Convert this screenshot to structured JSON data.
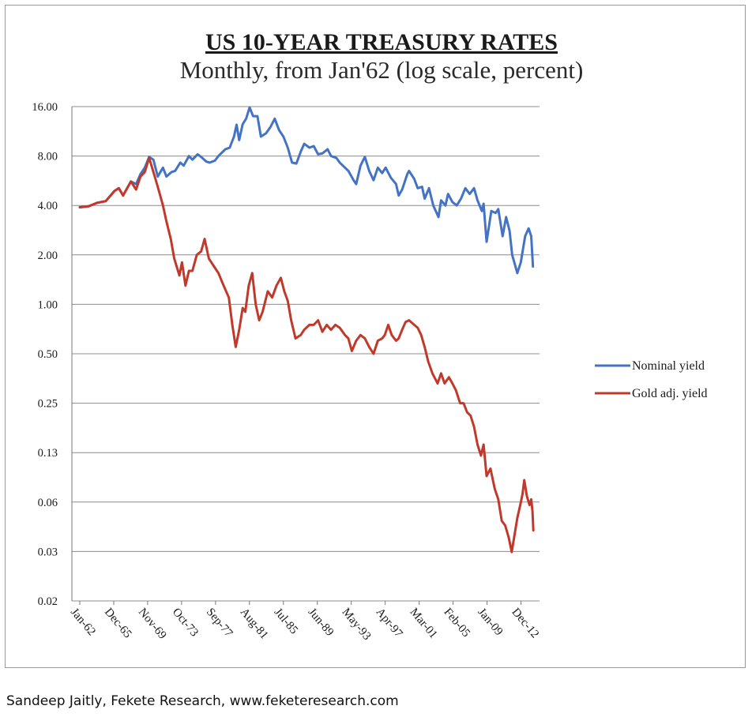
{
  "credit": "Sandeep Jaitly, Fekete Research, www.feketeresearch.com",
  "chart_data": {
    "type": "line",
    "title": "US 10-YEAR TREASURY RATES",
    "subtitle": "Monthly, from Jan'62 (log scale, percent)",
    "xlabel": "",
    "ylabel": "",
    "y_scale": "log2",
    "ylim": [
      0.02,
      16
    ],
    "y_ticks": [
      {
        "value": 16,
        "label": "16.00"
      },
      {
        "value": 8,
        "label": "8.00"
      },
      {
        "value": 4,
        "label": "4.00"
      },
      {
        "value": 2,
        "label": "2.00"
      },
      {
        "value": 1,
        "label": "1.00"
      },
      {
        "value": 0.5,
        "label": "0.50"
      },
      {
        "value": 0.25,
        "label": "0.25"
      },
      {
        "value": 0.125,
        "label": "0.13"
      },
      {
        "value": 0.0625,
        "label": "0.06"
      },
      {
        "value": 0.03125,
        "label": "0.03"
      },
      {
        "value": 0.015625,
        "label": "0.02"
      }
    ],
    "xlim": [
      1962.0,
      2014.5
    ],
    "x_ticks": [
      {
        "value": 1962.0,
        "label": "Jan-62"
      },
      {
        "value": 1965.92,
        "label": "Dec-65"
      },
      {
        "value": 1969.83,
        "label": "Nov-69"
      },
      {
        "value": 1973.75,
        "label": "Oct-73"
      },
      {
        "value": 1977.67,
        "label": "Sep-77"
      },
      {
        "value": 1981.58,
        "label": "Aug-81"
      },
      {
        "value": 1985.5,
        "label": "Jul-85"
      },
      {
        "value": 1989.42,
        "label": "Jun-89"
      },
      {
        "value": 1993.33,
        "label": "May-93"
      },
      {
        "value": 1997.25,
        "label": "Apr-97"
      },
      {
        "value": 2001.17,
        "label": "Mar-01"
      },
      {
        "value": 2005.08,
        "label": "Feb-05"
      },
      {
        "value": 2009.0,
        "label": "Jan-09"
      },
      {
        "value": 2012.92,
        "label": "Dec-12"
      }
    ],
    "grid": true,
    "legend_position": "right",
    "series": [
      {
        "name": "Nominal yield",
        "color": "#4472C4",
        "points": [
          [
            1962.0,
            3.9
          ],
          [
            1963.0,
            3.95
          ],
          [
            1964.0,
            4.15
          ],
          [
            1965.0,
            4.25
          ],
          [
            1966.0,
            4.9
          ],
          [
            1966.5,
            5.1
          ],
          [
            1967.0,
            4.6
          ],
          [
            1967.9,
            5.6
          ],
          [
            1968.5,
            5.4
          ],
          [
            1969.0,
            6.2
          ],
          [
            1969.5,
            6.8
          ],
          [
            1970.0,
            7.9
          ],
          [
            1970.5,
            7.6
          ],
          [
            1971.0,
            6.0
          ],
          [
            1971.6,
            6.8
          ],
          [
            1972.0,
            6.0
          ],
          [
            1972.6,
            6.4
          ],
          [
            1973.0,
            6.5
          ],
          [
            1973.6,
            7.3
          ],
          [
            1974.0,
            7.0
          ],
          [
            1974.6,
            8.0
          ],
          [
            1975.0,
            7.6
          ],
          [
            1975.6,
            8.2
          ],
          [
            1976.0,
            7.9
          ],
          [
            1976.6,
            7.4
          ],
          [
            1977.0,
            7.3
          ],
          [
            1977.6,
            7.5
          ],
          [
            1978.0,
            8.0
          ],
          [
            1978.8,
            8.8
          ],
          [
            1979.3,
            9.0
          ],
          [
            1979.8,
            10.5
          ],
          [
            1980.1,
            12.4
          ],
          [
            1980.4,
            10.0
          ],
          [
            1980.8,
            12.5
          ],
          [
            1981.2,
            13.5
          ],
          [
            1981.6,
            15.8
          ],
          [
            1982.0,
            14.0
          ],
          [
            1982.5,
            14.0
          ],
          [
            1982.9,
            10.5
          ],
          [
            1983.5,
            11.0
          ],
          [
            1984.0,
            12.0
          ],
          [
            1984.5,
            13.5
          ],
          [
            1985.0,
            11.5
          ],
          [
            1985.5,
            10.5
          ],
          [
            1986.0,
            9.0
          ],
          [
            1986.5,
            7.3
          ],
          [
            1987.0,
            7.2
          ],
          [
            1987.5,
            8.5
          ],
          [
            1987.9,
            9.5
          ],
          [
            1988.5,
            9.0
          ],
          [
            1989.0,
            9.2
          ],
          [
            1989.5,
            8.2
          ],
          [
            1990.0,
            8.3
          ],
          [
            1990.6,
            8.8
          ],
          [
            1991.0,
            8.0
          ],
          [
            1991.6,
            7.8
          ],
          [
            1992.0,
            7.3
          ],
          [
            1992.6,
            6.8
          ],
          [
            1993.0,
            6.5
          ],
          [
            1993.6,
            5.7
          ],
          [
            1993.9,
            5.4
          ],
          [
            1994.4,
            7.0
          ],
          [
            1994.9,
            7.9
          ],
          [
            1995.4,
            6.5
          ],
          [
            1995.9,
            5.7
          ],
          [
            1996.4,
            6.8
          ],
          [
            1996.9,
            6.3
          ],
          [
            1997.3,
            6.8
          ],
          [
            1997.9,
            5.9
          ],
          [
            1998.5,
            5.4
          ],
          [
            1998.8,
            4.6
          ],
          [
            1999.2,
            5.0
          ],
          [
            1999.8,
            6.2
          ],
          [
            2000.0,
            6.5
          ],
          [
            2000.6,
            5.8
          ],
          [
            2001.0,
            5.1
          ],
          [
            2001.5,
            5.2
          ],
          [
            2001.8,
            4.4
          ],
          [
            2002.3,
            5.1
          ],
          [
            2002.8,
            4.0
          ],
          [
            2003.4,
            3.4
          ],
          [
            2003.7,
            4.3
          ],
          [
            2004.2,
            4.0
          ],
          [
            2004.5,
            4.7
          ],
          [
            2005.0,
            4.2
          ],
          [
            2005.5,
            4.0
          ],
          [
            2006.0,
            4.4
          ],
          [
            2006.5,
            5.1
          ],
          [
            2007.0,
            4.7
          ],
          [
            2007.5,
            5.1
          ],
          [
            2007.9,
            4.3
          ],
          [
            2008.4,
            3.7
          ],
          [
            2008.6,
            4.1
          ],
          [
            2008.95,
            2.4
          ],
          [
            2009.5,
            3.7
          ],
          [
            2010.0,
            3.6
          ],
          [
            2010.3,
            3.8
          ],
          [
            2010.8,
            2.6
          ],
          [
            2011.2,
            3.4
          ],
          [
            2011.6,
            2.8
          ],
          [
            2011.9,
            2.0
          ],
          [
            2012.5,
            1.55
          ],
          [
            2012.9,
            1.8
          ],
          [
            2013.4,
            2.6
          ],
          [
            2013.8,
            2.9
          ],
          [
            2014.1,
            2.6
          ],
          [
            2014.3,
            1.7
          ]
        ]
      },
      {
        "name": "Gold adj. yield",
        "color": "#C0392B",
        "points": [
          [
            1962.0,
            3.9
          ],
          [
            1963.0,
            3.95
          ],
          [
            1964.0,
            4.15
          ],
          [
            1965.0,
            4.25
          ],
          [
            1966.0,
            4.9
          ],
          [
            1966.5,
            5.1
          ],
          [
            1967.0,
            4.6
          ],
          [
            1967.9,
            5.6
          ],
          [
            1968.5,
            5.0
          ],
          [
            1969.0,
            6.0
          ],
          [
            1969.5,
            6.4
          ],
          [
            1970.0,
            7.8
          ],
          [
            1970.5,
            6.4
          ],
          [
            1971.0,
            5.2
          ],
          [
            1971.6,
            4.0
          ],
          [
            1972.0,
            3.2
          ],
          [
            1972.5,
            2.5
          ],
          [
            1972.9,
            1.9
          ],
          [
            1973.5,
            1.5
          ],
          [
            1973.8,
            1.8
          ],
          [
            1974.2,
            1.3
          ],
          [
            1974.6,
            1.6
          ],
          [
            1975.0,
            1.6
          ],
          [
            1975.5,
            2.0
          ],
          [
            1976.0,
            2.1
          ],
          [
            1976.4,
            2.5
          ],
          [
            1976.9,
            1.9
          ],
          [
            1977.5,
            1.7
          ],
          [
            1978.0,
            1.55
          ],
          [
            1978.6,
            1.3
          ],
          [
            1979.2,
            1.1
          ],
          [
            1979.6,
            0.75
          ],
          [
            1980.0,
            0.55
          ],
          [
            1980.4,
            0.7
          ],
          [
            1980.8,
            0.95
          ],
          [
            1981.1,
            0.9
          ],
          [
            1981.5,
            1.3
          ],
          [
            1981.9,
            1.55
          ],
          [
            1982.3,
            1.0
          ],
          [
            1982.7,
            0.8
          ],
          [
            1983.1,
            0.9
          ],
          [
            1983.7,
            1.2
          ],
          [
            1984.2,
            1.1
          ],
          [
            1984.7,
            1.3
          ],
          [
            1985.2,
            1.45
          ],
          [
            1985.6,
            1.2
          ],
          [
            1986.0,
            1.05
          ],
          [
            1986.4,
            0.8
          ],
          [
            1986.9,
            0.62
          ],
          [
            1987.5,
            0.65
          ],
          [
            1987.9,
            0.7
          ],
          [
            1988.5,
            0.75
          ],
          [
            1989.0,
            0.75
          ],
          [
            1989.5,
            0.8
          ],
          [
            1990.0,
            0.68
          ],
          [
            1990.5,
            0.75
          ],
          [
            1991.0,
            0.7
          ],
          [
            1991.5,
            0.75
          ],
          [
            1992.0,
            0.72
          ],
          [
            1992.6,
            0.65
          ],
          [
            1993.0,
            0.62
          ],
          [
            1993.4,
            0.52
          ],
          [
            1993.9,
            0.6
          ],
          [
            1994.4,
            0.65
          ],
          [
            1994.9,
            0.62
          ],
          [
            1995.4,
            0.55
          ],
          [
            1995.9,
            0.5
          ],
          [
            1996.4,
            0.6
          ],
          [
            1996.9,
            0.62
          ],
          [
            1997.2,
            0.65
          ],
          [
            1997.6,
            0.75
          ],
          [
            1998.0,
            0.65
          ],
          [
            1998.5,
            0.6
          ],
          [
            1998.8,
            0.62
          ],
          [
            1999.2,
            0.7
          ],
          [
            1999.6,
            0.78
          ],
          [
            2000.0,
            0.8
          ],
          [
            2000.6,
            0.75
          ],
          [
            2001.0,
            0.72
          ],
          [
            2001.4,
            0.65
          ],
          [
            2001.8,
            0.55
          ],
          [
            2002.2,
            0.45
          ],
          [
            2002.7,
            0.38
          ],
          [
            2003.3,
            0.33
          ],
          [
            2003.7,
            0.38
          ],
          [
            2004.1,
            0.33
          ],
          [
            2004.6,
            0.36
          ],
          [
            2005.0,
            0.33
          ],
          [
            2005.4,
            0.3
          ],
          [
            2005.9,
            0.25
          ],
          [
            2006.3,
            0.25
          ],
          [
            2006.7,
            0.22
          ],
          [
            2007.1,
            0.21
          ],
          [
            2007.5,
            0.18
          ],
          [
            2007.9,
            0.14
          ],
          [
            2008.3,
            0.12
          ],
          [
            2008.6,
            0.14
          ],
          [
            2008.95,
            0.09
          ],
          [
            2009.4,
            0.1
          ],
          [
            2009.9,
            0.075
          ],
          [
            2010.3,
            0.065
          ],
          [
            2010.7,
            0.048
          ],
          [
            2011.1,
            0.045
          ],
          [
            2011.5,
            0.038
          ],
          [
            2011.85,
            0.031
          ],
          [
            2012.2,
            0.04
          ],
          [
            2012.5,
            0.05
          ],
          [
            2012.9,
            0.062
          ],
          [
            2013.1,
            0.07
          ],
          [
            2013.3,
            0.085
          ],
          [
            2013.6,
            0.068
          ],
          [
            2013.9,
            0.06
          ],
          [
            2014.1,
            0.065
          ],
          [
            2014.25,
            0.055
          ],
          [
            2014.35,
            0.042
          ]
        ]
      }
    ]
  }
}
